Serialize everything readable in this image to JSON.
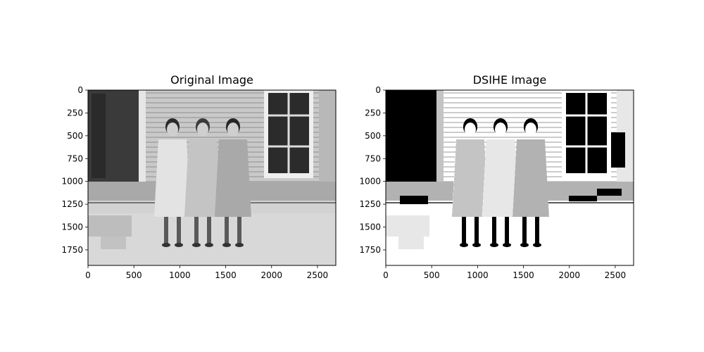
{
  "figure": {
    "panels": [
      {
        "id": "original",
        "title": "Original Image",
        "variant": "original",
        "x_ticks": [
          "0",
          "500",
          "1000",
          "1500",
          "2000",
          "2500"
        ],
        "y_ticks": [
          "0",
          "250",
          "500",
          "750",
          "1000",
          "1250",
          "1500",
          "1750"
        ]
      },
      {
        "id": "dsihe",
        "title": "DSIHE Image",
        "variant": "enhanced",
        "x_ticks": [
          "0",
          "500",
          "1000",
          "1500",
          "2000",
          "2500"
        ],
        "y_ticks": [
          "0",
          "250",
          "500",
          "750",
          "1000",
          "1250",
          "1500",
          "1750"
        ]
      }
    ],
    "image_extent": {
      "x": [
        0,
        2700
      ],
      "y": [
        0,
        1920
      ]
    },
    "x_tick_values": [
      0,
      500,
      1000,
      1500,
      2000,
      2500
    ],
    "y_tick_values": [
      0,
      250,
      500,
      750,
      1000,
      1250,
      1500,
      1750
    ]
  }
}
